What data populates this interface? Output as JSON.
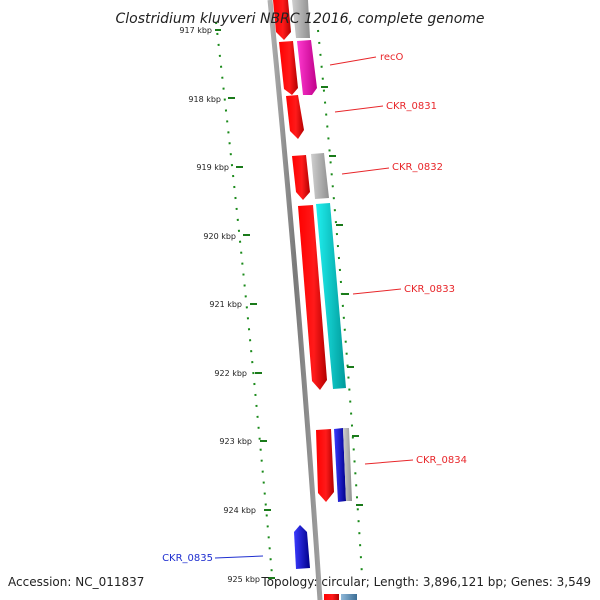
{
  "title": "Clostridium kluyveri NBRC 12016, complete genome",
  "footer": {
    "accession": "Accession: NC_011837",
    "stats": "Topology: circular; Length: 3,896,121 bp; Genes: 3,549"
  },
  "ticks": [
    "917 kbp",
    "918 kbp",
    "919 kbp",
    "920 kbp",
    "921 kbp",
    "922 kbp",
    "923 kbp",
    "924 kbp",
    "925 kbp"
  ],
  "gene_labels": [
    {
      "id": "recO",
      "text": "recO",
      "color": "#e8262a"
    },
    {
      "id": "CKR_0831",
      "text": "CKR_0831",
      "color": "#e8262a"
    },
    {
      "id": "CKR_0832",
      "text": "CKR_0832",
      "color": "#e8262a"
    },
    {
      "id": "CKR_0833",
      "text": "CKR_0833",
      "color": "#e8262a"
    },
    {
      "id": "CKR_0834",
      "text": "CKR_0834",
      "color": "#e8262a"
    },
    {
      "id": "CKR_0835",
      "text": "CKR_0835",
      "color": "#1f2fd0"
    }
  ],
  "colors": {
    "red": "#ff0000",
    "magenta": "#ff20c0",
    "gray": "#b4b4b4",
    "cyan": "#00d8d8",
    "blue": "#0a0aff",
    "backbone": "#8a8a8a",
    "gc_dots": "#1a8a1a"
  }
}
